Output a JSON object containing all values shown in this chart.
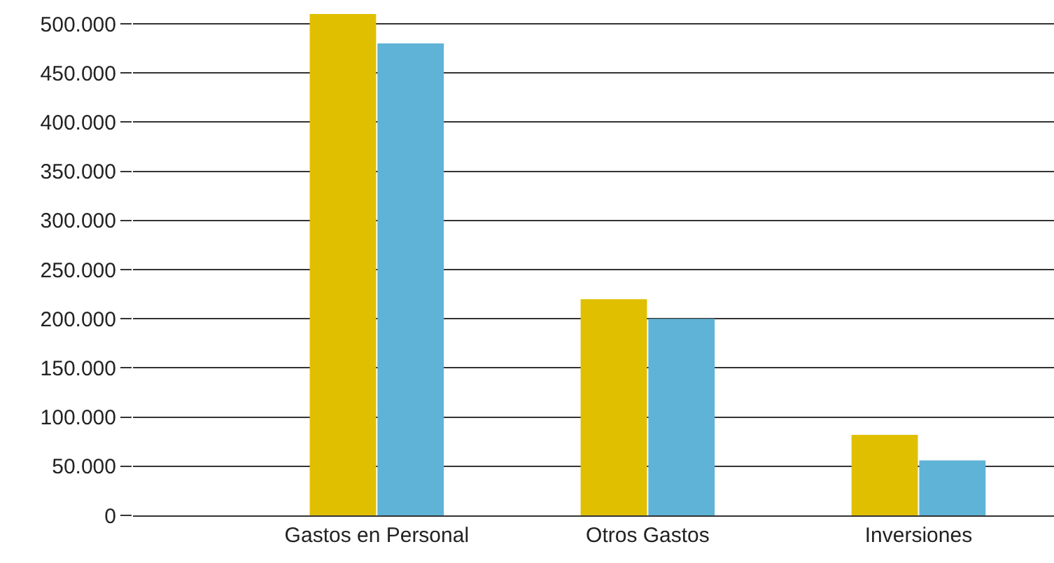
{
  "chart_data": {
    "type": "bar",
    "categories": [
      "Gastos en Personal",
      "Otros Gastos",
      "Inversiones"
    ],
    "series": [
      {
        "color": "#e0bf00",
        "values": [
          510000,
          220000,
          82000
        ]
      },
      {
        "color": "#5fb3d6",
        "values": [
          480000,
          200000,
          56000
        ]
      }
    ],
    "ylim": [
      0,
      510000
    ],
    "yticks": [
      0,
      {
        "value": 50000,
        "label": "50.000"
      },
      {
        "value": 100000,
        "label": "100.000"
      },
      {
        "value": 150000,
        "label": "150.000"
      },
      {
        "value": 200000,
        "label": "200.000"
      },
      {
        "value": 250000,
        "label": "250.000"
      },
      {
        "value": 300000,
        "label": "300.000"
      },
      {
        "value": 350000,
        "label": "350.000"
      },
      {
        "value": 400000,
        "label": "400.000"
      },
      {
        "value": 450000,
        "label": "450.000"
      },
      {
        "value": 500000,
        "label": "500.000"
      }
    ],
    "grid": "y"
  }
}
